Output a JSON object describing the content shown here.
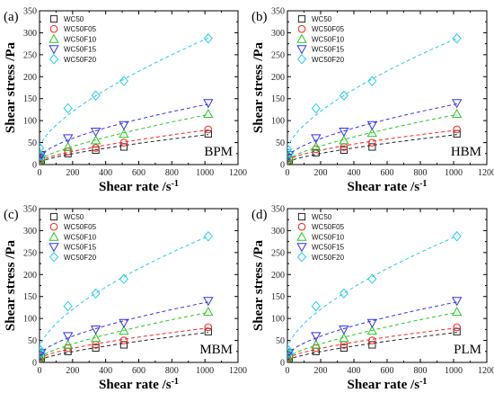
{
  "chart_data": [
    {
      "type": "scatter",
      "panel_label": "(a)",
      "method": "BPM",
      "xlabel": "Shear rate /s",
      "xlabel_sup": "-1",
      "ylabel": "Shear stress /Pa",
      "xlim": [
        0,
        1200
      ],
      "ylim": [
        0,
        350
      ],
      "xticks": [
        "0",
        "200",
        "400",
        "600",
        "800",
        "1000",
        "1200"
      ],
      "yticks": [
        "0",
        "50",
        "100",
        "150",
        "200",
        "250",
        "300",
        "350"
      ],
      "legend_position": "top-left",
      "series": [
        {
          "name": "WC50",
          "marker": "square",
          "color": "#222222",
          "x": [
            0.1,
            10,
            172,
            340,
            510,
            1020
          ],
          "y": [
            5,
            10,
            25,
            33,
            40,
            70
          ]
        },
        {
          "name": "WC50F05",
          "marker": "circle",
          "color": "#ff2020",
          "x": [
            0.1,
            10,
            172,
            340,
            510,
            1020
          ],
          "y": [
            8,
            13,
            30,
            38,
            50,
            80
          ]
        },
        {
          "name": "WC50F10",
          "marker": "triangle-up",
          "color": "#22cc22",
          "x": [
            0.1,
            10,
            172,
            340,
            510,
            1020
          ],
          "y": [
            10,
            18,
            40,
            55,
            70,
            115
          ]
        },
        {
          "name": "WC50F15",
          "marker": "triangle-down",
          "color": "#3333ee",
          "x": [
            0.1,
            10,
            172,
            340,
            510,
            1020
          ],
          "y": [
            15,
            22,
            60,
            75,
            90,
            140
          ]
        },
        {
          "name": "WC50F20",
          "marker": "diamond",
          "color": "#22ccee",
          "x": [
            0.1,
            10,
            172,
            340,
            510,
            1020
          ],
          "y": [
            38,
            20,
            128,
            157,
            190,
            287
          ]
        }
      ]
    },
    {
      "type": "scatter",
      "panel_label": "(b)",
      "method": "HBM",
      "xlabel": "Shear rate /s",
      "xlabel_sup": "-1",
      "ylabel": "Shear stress /Pa",
      "xlim": [
        0,
        1200
      ],
      "ylim": [
        0,
        350
      ],
      "xticks": [
        "0",
        "200",
        "400",
        "600",
        "800",
        "1000",
        "1200"
      ],
      "yticks": [
        "0",
        "50",
        "100",
        "150",
        "200",
        "250",
        "300",
        "350"
      ],
      "legend_position": "top-left",
      "series": [
        {
          "name": "WC50",
          "marker": "square",
          "color": "#222222",
          "x": [
            0.1,
            10,
            172,
            340,
            510,
            1020
          ],
          "y": [
            5,
            10,
            27,
            33,
            40,
            70
          ]
        },
        {
          "name": "WC50F05",
          "marker": "circle",
          "color": "#ff2020",
          "x": [
            0.1,
            10,
            172,
            340,
            510,
            1020
          ],
          "y": [
            8,
            14,
            35,
            40,
            50,
            80
          ]
        },
        {
          "name": "WC50F10",
          "marker": "triangle-up",
          "color": "#22cc22",
          "x": [
            0.1,
            10,
            172,
            340,
            510,
            1020
          ],
          "y": [
            10,
            18,
            40,
            55,
            72,
            115
          ]
        },
        {
          "name": "WC50F15",
          "marker": "triangle-down",
          "color": "#3333ee",
          "x": [
            0.1,
            10,
            172,
            340,
            510,
            1020
          ],
          "y": [
            16,
            22,
            60,
            75,
            90,
            140
          ]
        },
        {
          "name": "WC50F20",
          "marker": "diamond",
          "color": "#22ccee",
          "x": [
            0.1,
            10,
            172,
            340,
            510,
            1020
          ],
          "y": [
            35,
            25,
            128,
            157,
            190,
            287
          ]
        }
      ]
    },
    {
      "type": "scatter",
      "panel_label": "(c)",
      "method": "MBM",
      "xlabel": "Shear rate /s",
      "xlabel_sup": "-1",
      "ylabel": "Shear stress /Pa",
      "xlim": [
        0,
        1200
      ],
      "ylim": [
        0,
        350
      ],
      "xticks": [
        "0",
        "200",
        "400",
        "600",
        "800",
        "1000",
        "1200"
      ],
      "yticks": [
        "0",
        "50",
        "100",
        "150",
        "200",
        "250",
        "300",
        "350"
      ],
      "legend_position": "top-left",
      "series": [
        {
          "name": "WC50",
          "marker": "square",
          "color": "#222222",
          "x": [
            0.1,
            10,
            172,
            340,
            510,
            1020
          ],
          "y": [
            5,
            10,
            25,
            33,
            40,
            70
          ]
        },
        {
          "name": "WC50F05",
          "marker": "circle",
          "color": "#ff2020",
          "x": [
            0.1,
            10,
            172,
            340,
            510,
            1020
          ],
          "y": [
            8,
            13,
            33,
            40,
            50,
            80
          ]
        },
        {
          "name": "WC50F10",
          "marker": "triangle-up",
          "color": "#22cc22",
          "x": [
            0.1,
            10,
            172,
            340,
            510,
            1020
          ],
          "y": [
            10,
            18,
            40,
            55,
            72,
            115
          ]
        },
        {
          "name": "WC50F15",
          "marker": "triangle-down",
          "color": "#3333ee",
          "x": [
            0.1,
            10,
            172,
            340,
            510,
            1020
          ],
          "y": [
            15,
            22,
            60,
            75,
            90,
            140
          ]
        },
        {
          "name": "WC50F20",
          "marker": "diamond",
          "color": "#22ccee",
          "x": [
            0.1,
            10,
            172,
            340,
            510,
            1020
          ],
          "y": [
            30,
            22,
            128,
            157,
            190,
            287
          ]
        }
      ]
    },
    {
      "type": "scatter",
      "panel_label": "(d)",
      "method": "PLM",
      "xlabel": "Shear rate /s",
      "xlabel_sup": "-1",
      "ylabel": "Shear stress /Pa",
      "xlim": [
        0,
        1200
      ],
      "ylim": [
        0,
        350
      ],
      "xticks": [
        "0",
        "200",
        "400",
        "600",
        "800",
        "1000",
        "1200"
      ],
      "yticks": [
        "0",
        "50",
        "100",
        "150",
        "200",
        "250",
        "300",
        "350"
      ],
      "legend_position": "top-left",
      "series": [
        {
          "name": "WC50",
          "marker": "square",
          "color": "#222222",
          "x": [
            0.1,
            10,
            172,
            340,
            510,
            1020
          ],
          "y": [
            5,
            10,
            25,
            33,
            40,
            70
          ]
        },
        {
          "name": "WC50F05",
          "marker": "circle",
          "color": "#ff2020",
          "x": [
            0.1,
            10,
            172,
            340,
            510,
            1020
          ],
          "y": [
            8,
            13,
            33,
            40,
            50,
            80
          ]
        },
        {
          "name": "WC50F10",
          "marker": "triangle-up",
          "color": "#22cc22",
          "x": [
            0.1,
            10,
            172,
            340,
            510,
            1020
          ],
          "y": [
            10,
            18,
            40,
            55,
            72,
            115
          ]
        },
        {
          "name": "WC50F15",
          "marker": "triangle-down",
          "color": "#3333ee",
          "x": [
            0.1,
            10,
            172,
            340,
            510,
            1020
          ],
          "y": [
            15,
            22,
            60,
            75,
            90,
            140
          ]
        },
        {
          "name": "WC50F20",
          "marker": "diamond",
          "color": "#22ccee",
          "x": [
            0.1,
            10,
            172,
            340,
            510,
            1020
          ],
          "y": [
            30,
            22,
            128,
            157,
            190,
            287
          ]
        }
      ]
    }
  ]
}
